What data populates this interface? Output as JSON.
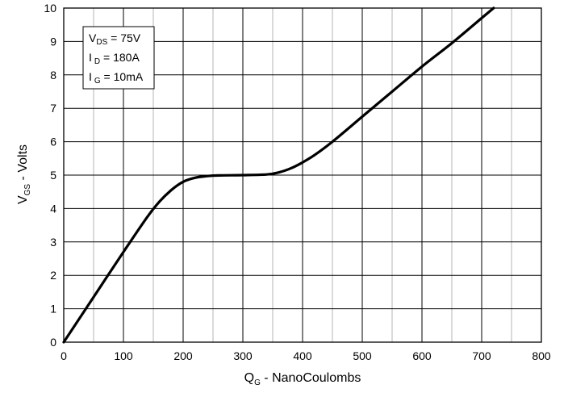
{
  "chart_data": {
    "type": "line",
    "title": "",
    "xlabel": {
      "main": "Q",
      "sub": "G",
      "rest": " - NanoCoulombs"
    },
    "ylabel": {
      "main": "V",
      "sub": "GS",
      "rest": " - Volts"
    },
    "xlim": [
      0,
      800
    ],
    "ylim": [
      0,
      10
    ],
    "x_ticks": [
      "0",
      "100",
      "200",
      "300",
      "400",
      "500",
      "600",
      "700",
      "800"
    ],
    "y_ticks": [
      "0",
      "1",
      "2",
      "3",
      "4",
      "5",
      "6",
      "7",
      "8",
      "9",
      "10"
    ],
    "x_major_step": 100,
    "x_minor_step": 50,
    "y_major_step": 1,
    "grid": true,
    "legend": {
      "placement": "top-left",
      "lines": [
        {
          "main": "V",
          "sub": "DS",
          "rest": " = 75V"
        },
        {
          "main": "I",
          "sub": "D",
          "rest": " = 180A"
        },
        {
          "main": "I",
          "sub": "G",
          "rest": " = 10mA"
        }
      ]
    },
    "series": [
      {
        "color": "#000000",
        "x": [
          0,
          50,
          100,
          140,
          160,
          180,
          200,
          220,
          240,
          260,
          300,
          340,
          360,
          380,
          400,
          420,
          450,
          500,
          550,
          600,
          650,
          700,
          720
        ],
        "y": [
          0,
          1.35,
          2.7,
          3.75,
          4.2,
          4.55,
          4.8,
          4.92,
          4.97,
          4.99,
          5.0,
          5.02,
          5.08,
          5.2,
          5.38,
          5.6,
          6.0,
          6.75,
          7.5,
          8.25,
          8.95,
          9.7,
          10.0
        ]
      }
    ]
  }
}
